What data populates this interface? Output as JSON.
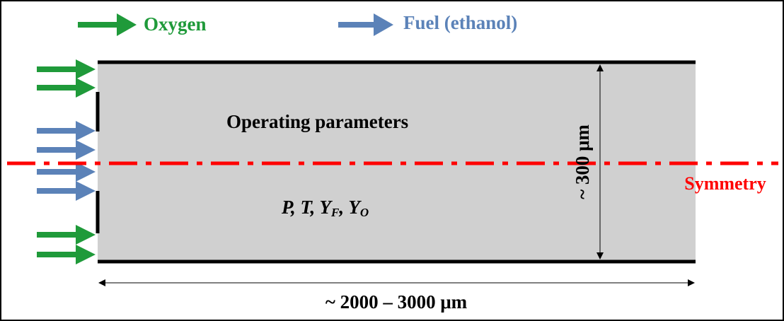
{
  "legend": {
    "oxygen": "Oxygen",
    "fuel": "Fuel (ethanol)"
  },
  "domain": {
    "title": "Operating parameters",
    "parameters": [
      {
        "text": "P, T, Y",
        "sub": "F"
      },
      {
        "text": ", Y",
        "sub": "O"
      }
    ],
    "height": "~ 300 μm",
    "length": "~ 2000 – 3000 μm"
  },
  "symmetry": "Symmetry"
}
